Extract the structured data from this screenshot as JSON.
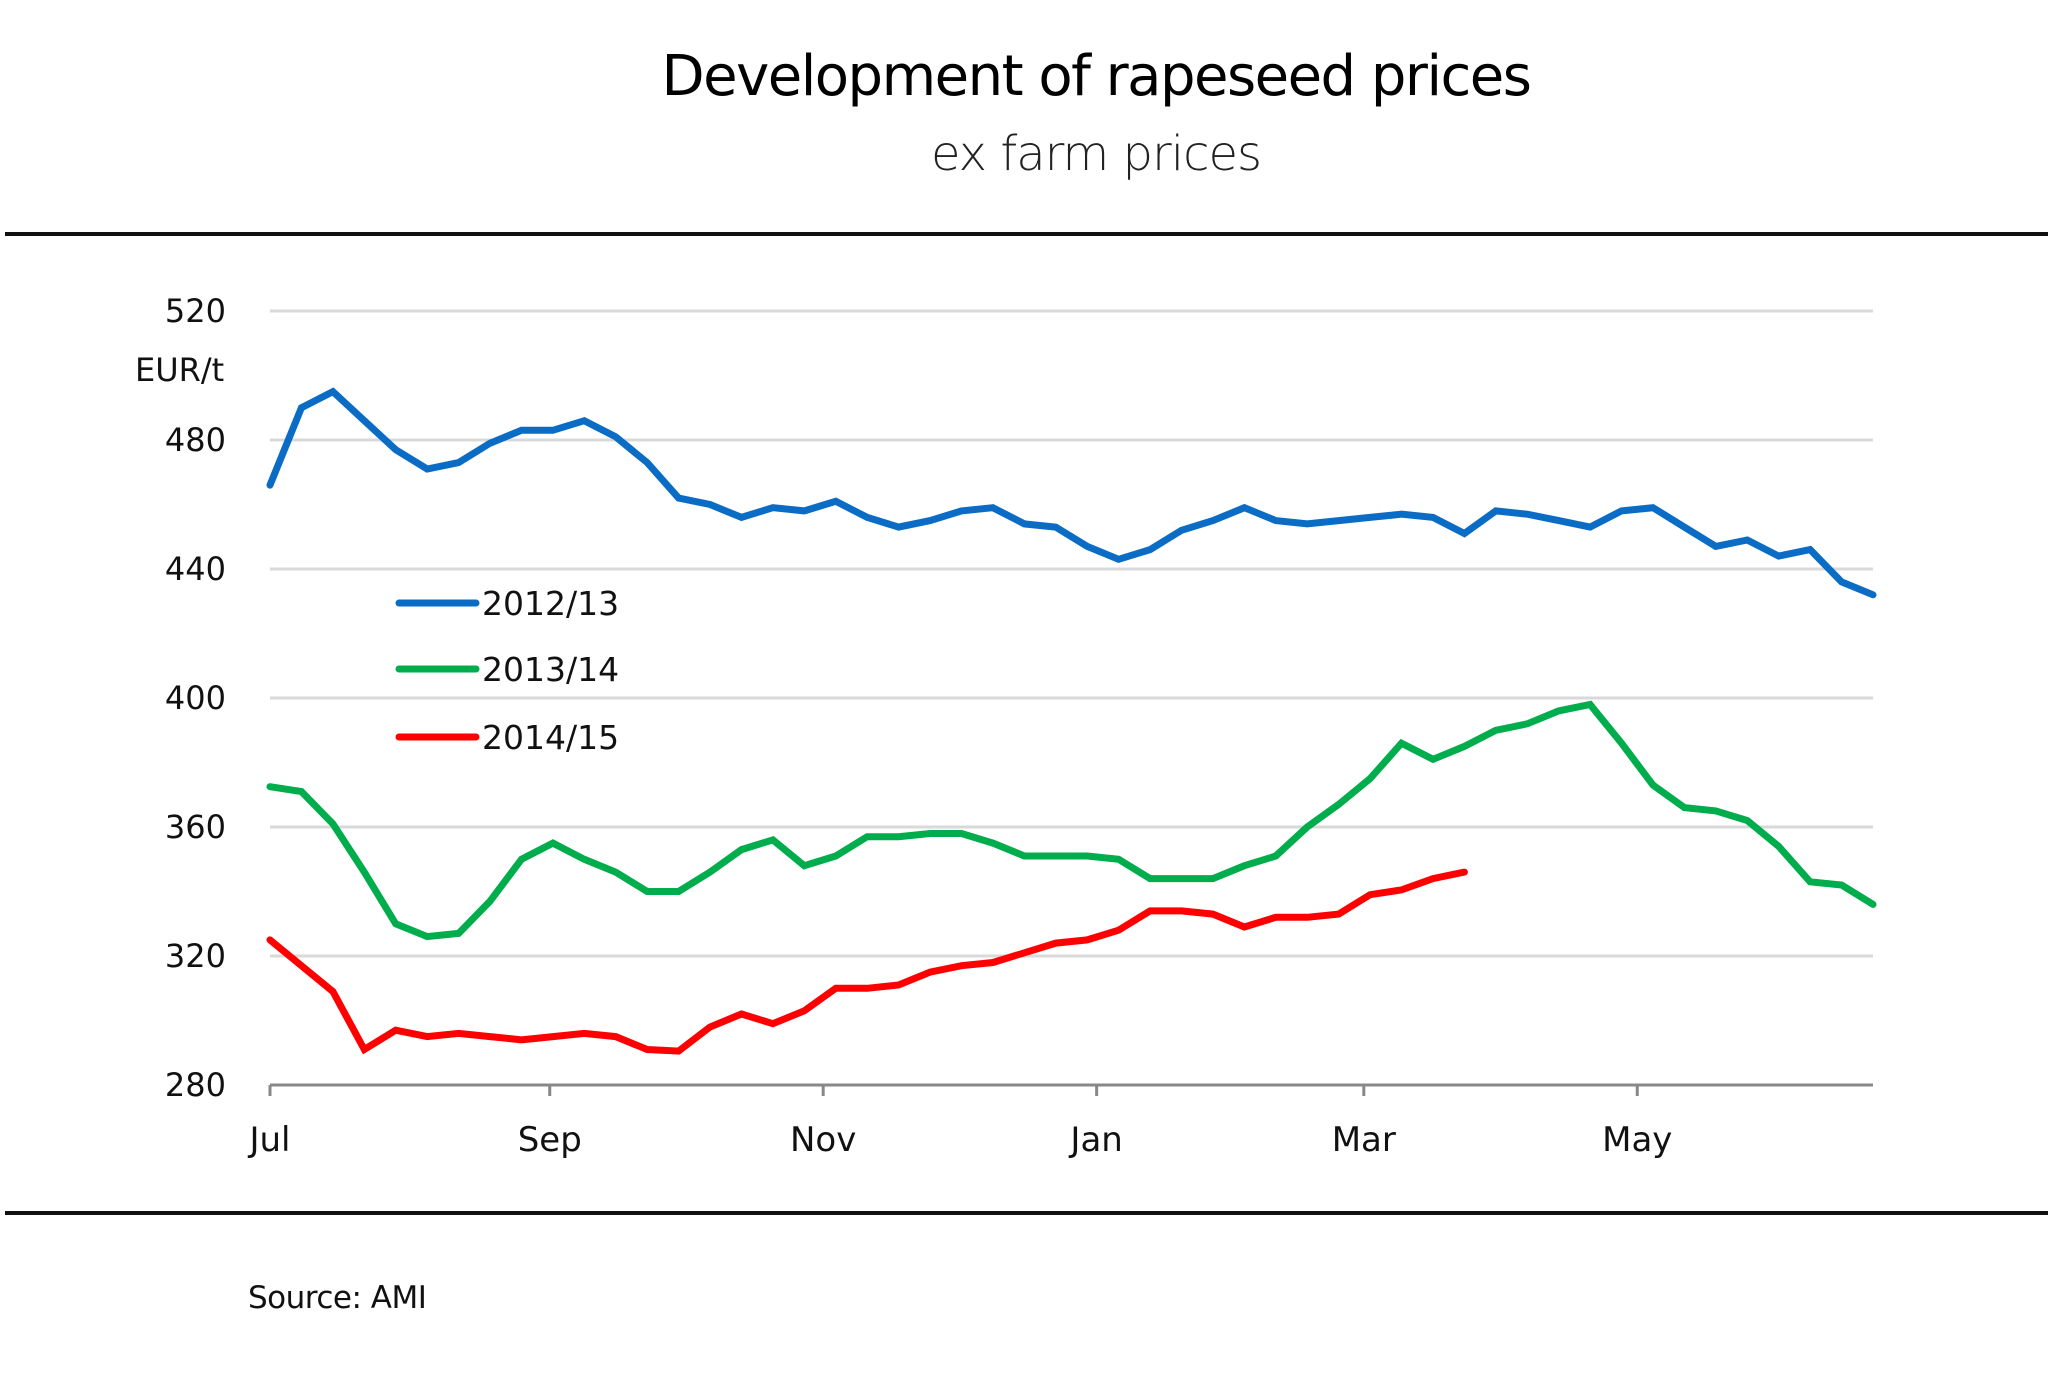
{
  "header": {
    "title": "Development of rapeseed prices",
    "subtitle": "ex farm prices"
  },
  "footer": {
    "source": "Source: AMI"
  },
  "chart_data": {
    "type": "line",
    "title": "Development of rapeseed prices",
    "subtitle": "ex farm prices",
    "xlabel": "",
    "ylabel": "EUR/t",
    "ylim": [
      280,
      520
    ],
    "yticks": [
      280,
      320,
      360,
      400,
      440,
      480,
      520
    ],
    "ytick_labels": [
      "280",
      "320",
      "360",
      "400",
      "440",
      "480",
      "520"
    ],
    "x_unit": "week of marketing year (starting July)",
    "x_count": 52,
    "xticks": [
      {
        "label": "Jul",
        "week": 0
      },
      {
        "label": "Sep",
        "week": 8.9
      },
      {
        "label": "Nov",
        "week": 17.6
      },
      {
        "label": "Jan",
        "week": 26.3
      },
      {
        "label": "Mar",
        "week": 34.8
      },
      {
        "label": "May",
        "week": 43.5
      }
    ],
    "grid": true,
    "legend_position": "upper-left",
    "source": "Source: AMI",
    "series": [
      {
        "name": "2012/13",
        "color": "#0a6cc4",
        "values": [
          466,
          490,
          495,
          486,
          477,
          471,
          473,
          479,
          483,
          483,
          486,
          481,
          473,
          462,
          460,
          456,
          459,
          458,
          461,
          456,
          453,
          455,
          458,
          459,
          454,
          453,
          447,
          443,
          446,
          452,
          455,
          459,
          455,
          454,
          455,
          456,
          457,
          456,
          451,
          458,
          457,
          455,
          453,
          458,
          459,
          453,
          447,
          449,
          444,
          446,
          436,
          432
        ]
      },
      {
        "name": "2013/14",
        "color": "#00ad4c",
        "values": [
          372.5,
          371,
          361,
          346,
          330,
          326,
          327,
          337,
          350,
          355,
          350,
          346,
          340,
          340,
          346,
          353,
          356,
          348,
          351,
          357,
          357,
          358,
          358,
          355,
          351,
          351,
          351,
          350,
          344,
          344,
          344,
          348,
          351,
          360,
          367,
          375,
          386,
          381,
          385,
          390,
          392,
          396,
          398,
          386,
          373,
          366,
          365,
          362,
          354,
          343,
          342,
          336
        ]
      },
      {
        "name": "2014/15",
        "color": "#ff0000",
        "values": [
          325,
          317,
          309,
          291,
          297,
          295,
          296,
          295,
          294,
          295,
          296,
          295,
          291,
          290.5,
          298,
          302,
          299,
          303,
          310,
          310,
          311,
          315,
          317,
          318,
          321,
          324,
          325,
          328,
          334,
          334,
          333,
          329,
          332,
          332,
          333,
          339,
          340.5,
          344,
          346
        ]
      }
    ]
  }
}
